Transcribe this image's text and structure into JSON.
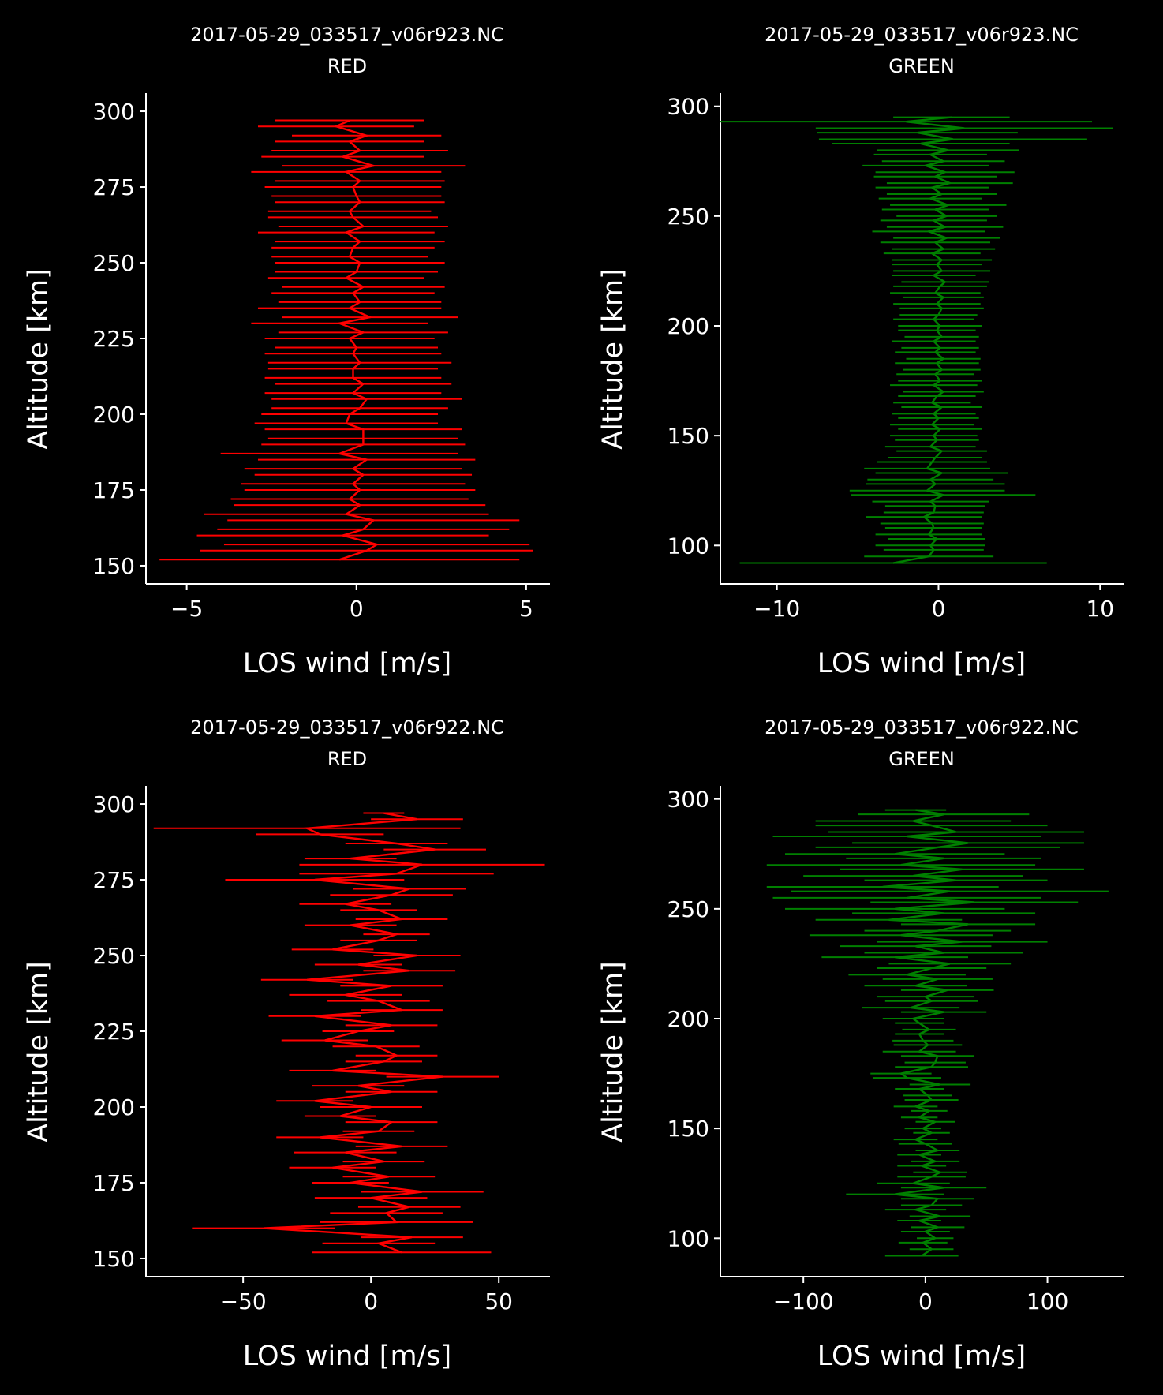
{
  "figure": {
    "background": "#000000",
    "foreground": "#ffffff"
  },
  "chart_data": [
    {
      "type": "line",
      "title": "2017-05-29_033517_v06r923.NC",
      "subtitle": "RED",
      "xlabel": "LOS wind [m/s]",
      "ylabel": "Altitude [km]",
      "color": "#ff0000",
      "xlim": [
        -6.2,
        5.7
      ],
      "ylim": [
        144,
        306
      ],
      "xticks": [
        -5,
        0,
        5
      ],
      "xtick_labels": [
        "−5",
        "0",
        "5"
      ],
      "yticks": [
        150,
        175,
        200,
        225,
        250,
        275,
        300
      ],
      "ytick_labels": [
        "150",
        "175",
        "200",
        "225",
        "250",
        "275",
        "300"
      ],
      "grid": false,
      "series": [
        {
          "altitude": [
            152,
            155,
            157,
            160,
            162,
            165,
            167,
            170,
            172,
            175,
            177,
            180,
            182,
            185,
            187,
            190,
            192,
            195,
            197,
            200,
            202,
            205,
            207,
            210,
            212,
            215,
            217,
            220,
            222,
            225,
            227,
            230,
            232,
            235,
            237,
            240,
            242,
            245,
            247,
            250,
            252,
            255,
            257,
            260,
            262,
            265,
            267,
            270,
            272,
            275,
            277,
            280,
            282,
            285,
            287,
            290,
            292,
            295,
            297
          ],
          "wind": [
            -0.5,
            0.3,
            0.6,
            -0.4,
            0.2,
            0.5,
            -0.3,
            0.1,
            -0.2,
            0.1,
            -0.1,
            0.2,
            -0.1,
            0.3,
            -0.5,
            0.2,
            0.2,
            0.2,
            -0.3,
            -0.2,
            0.1,
            0.3,
            -0.1,
            0.2,
            -0.1,
            -0.1,
            0.1,
            -0.1,
            0.0,
            -0.2,
            0.2,
            -0.5,
            0.4,
            -0.2,
            0.1,
            -0.1,
            0.2,
            -0.3,
            0.0,
            0.1,
            -0.2,
            -0.1,
            0.1,
            -0.3,
            0.2,
            -0.1,
            -0.2,
            0.1,
            0.0,
            -0.1,
            0.1,
            -0.3,
            0.5,
            -0.4,
            0.1,
            -0.2,
            0.3,
            -0.6,
            -0.2
          ],
          "error": [
            5.3,
            4.9,
            4.5,
            4.3,
            4.3,
            4.3,
            4.2,
            3.7,
            3.5,
            3.4,
            3.3,
            3.2,
            3.2,
            3.2,
            3.5,
            3.0,
            2.8,
            2.9,
            2.7,
            2.6,
            2.6,
            2.8,
            2.6,
            2.6,
            2.6,
            2.5,
            2.7,
            2.6,
            2.4,
            2.5,
            2.5,
            2.6,
            2.6,
            2.7,
            2.4,
            2.4,
            2.4,
            2.3,
            2.4,
            2.5,
            2.3,
            2.4,
            2.5,
            2.6,
            2.5,
            2.5,
            2.4,
            2.5,
            2.5,
            2.6,
            2.5,
            2.8,
            2.7,
            2.4,
            2.6,
            2.2,
            2.2,
            2.3,
            2.2
          ]
        }
      ]
    },
    {
      "type": "line",
      "title": "2017-05-29_033517_v06r923.NC",
      "subtitle": "GREEN",
      "xlabel": "LOS wind [m/s]",
      "ylabel": "Altitude [km]",
      "color": "#008000",
      "xlim": [
        -13.5,
        11.5
      ],
      "ylim": [
        82.5,
        306
      ],
      "xticks": [
        -10,
        0,
        10
      ],
      "xtick_labels": [
        "−10",
        "0",
        "10"
      ],
      "yticks": [
        100,
        150,
        200,
        250,
        300
      ],
      "ytick_labels": [
        "100",
        "150",
        "200",
        "250",
        "300"
      ],
      "grid": false,
      "series": [
        {
          "altitude": [
            92,
            95,
            98,
            100,
            103,
            105,
            108,
            110,
            113,
            115,
            118,
            120,
            123,
            125,
            128,
            130,
            133,
            135,
            138,
            140,
            143,
            145,
            148,
            150,
            153,
            155,
            158,
            160,
            163,
            165,
            168,
            170,
            173,
            175,
            178,
            180,
            183,
            185,
            188,
            190,
            193,
            195,
            198,
            200,
            203,
            205,
            208,
            210,
            213,
            215,
            218,
            220,
            223,
            225,
            228,
            230,
            233,
            235,
            238,
            240,
            243,
            245,
            248,
            250,
            253,
            255,
            258,
            260,
            263,
            265,
            268,
            270,
            273,
            275,
            278,
            280,
            283,
            285,
            288,
            290,
            293,
            295
          ],
          "wind": [
            -2.8,
            -0.6,
            -0.3,
            -0.5,
            -0.1,
            -0.6,
            -0.3,
            -0.4,
            -0.9,
            -0.3,
            -0.2,
            -0.5,
            0.3,
            -0.7,
            -0.2,
            -0.5,
            0.2,
            -0.7,
            -0.4,
            -0.2,
            0.2,
            -0.5,
            -0.1,
            -0.3,
            0.1,
            -0.4,
            0.0,
            -0.3,
            0.2,
            -0.4,
            -0.1,
            0.3,
            -0.3,
            0.1,
            -0.2,
            0.2,
            -0.1,
            0.3,
            -0.2,
            0.1,
            -0.3,
            0.2,
            -0.1,
            0.1,
            -0.3,
            0.0,
            0.2,
            -0.1,
            0.3,
            -0.2,
            0.1,
            0.4,
            -0.3,
            0.2,
            -0.1,
            0.2,
            -0.4,
            0.3,
            -0.2,
            0.5,
            -0.6,
            0.4,
            -0.3,
            0.5,
            -0.2,
            0.6,
            -0.5,
            0.2,
            -0.4,
            0.7,
            -0.2,
            0.4,
            -0.8,
            0.3,
            -0.5,
            0.6,
            -1.1,
            0.9,
            -1.3,
            1.6,
            -2.0,
            0.8
          ],
          "error": [
            9.5,
            4.0,
            3.1,
            3.4,
            3.0,
            3.3,
            3.0,
            3.2,
            3.6,
            3.1,
            3.1,
            3.6,
            5.7,
            4.8,
            4.3,
            3.9,
            4.1,
            3.9,
            3.4,
            2.9,
            2.8,
            2.8,
            2.6,
            2.7,
            2.6,
            2.6,
            2.5,
            2.6,
            2.5,
            2.4,
            2.4,
            2.5,
            2.7,
            2.6,
            2.4,
            2.4,
            2.6,
            2.3,
            2.5,
            2.4,
            2.6,
            2.3,
            2.4,
            2.6,
            2.5,
            2.4,
            2.6,
            2.7,
            2.5,
            2.8,
            2.9,
            2.7,
            2.6,
            3.0,
            2.8,
            3.1,
            3.0,
            3.2,
            3.4,
            3.3,
            3.5,
            3.6,
            3.3,
            3.1,
            3.3,
            3.6,
            3.2,
            3.4,
            3.5,
            3.9,
            3.8,
            4.3,
            3.9,
            3.8,
            3.5,
            4.4,
            5.5,
            8.3,
            6.2,
            9.2,
            11.5,
            3.6
          ]
        }
      ]
    },
    {
      "type": "line",
      "title": "2017-05-29_033517_v06r922.NC",
      "subtitle": "RED",
      "xlabel": "LOS wind [m/s]",
      "ylabel": "Altitude [km]",
      "color": "#ff0000",
      "xlim": [
        -88,
        70
      ],
      "ylim": [
        144,
        306
      ],
      "xticks": [
        -50,
        0,
        50
      ],
      "xtick_labels": [
        "−50",
        "0",
        "50"
      ],
      "yticks": [
        150,
        175,
        200,
        225,
        250,
        275,
        300
      ],
      "ytick_labels": [
        "150",
        "175",
        "200",
        "225",
        "250",
        "275",
        "300"
      ],
      "grid": false,
      "series": [
        {
          "altitude": [
            152,
            155,
            157,
            160,
            162,
            165,
            167,
            170,
            172,
            175,
            177,
            180,
            182,
            185,
            187,
            190,
            192,
            195,
            197,
            200,
            202,
            205,
            207,
            210,
            212,
            215,
            217,
            220,
            222,
            225,
            227,
            230,
            232,
            235,
            237,
            240,
            242,
            245,
            247,
            250,
            252,
            255,
            257,
            260,
            262,
            265,
            267,
            270,
            272,
            275,
            277,
            280,
            282,
            285,
            287,
            290,
            292,
            295,
            297
          ],
          "wind": [
            12,
            3,
            16,
            -42,
            10,
            6,
            15,
            0,
            20,
            -8,
            7,
            -15,
            5,
            -10,
            12,
            -20,
            3,
            8,
            -12,
            0,
            -22,
            8,
            -5,
            28,
            -15,
            5,
            10,
            2,
            -18,
            -5,
            8,
            -22,
            12,
            3,
            -10,
            8,
            -25,
            15,
            -5,
            18,
            -15,
            3,
            10,
            -8,
            12,
            3,
            -10,
            8,
            15,
            -22,
            10,
            20,
            -8,
            25,
            10,
            -20,
            -25,
            18,
            5
          ],
          "error": [
            35,
            22,
            20,
            28,
            30,
            22,
            20,
            22,
            24,
            15,
            18,
            17,
            16,
            20,
            18,
            17,
            14,
            18,
            14,
            20,
            15,
            18,
            18,
            22,
            17,
            15,
            16,
            17,
            17,
            14,
            18,
            18,
            16,
            20,
            22,
            20,
            18,
            18,
            17,
            17,
            16,
            15,
            13,
            18,
            18,
            15,
            18,
            24,
            22,
            35,
            38,
            48,
            18,
            20,
            20,
            25,
            60,
            18,
            8
          ]
        }
      ]
    },
    {
      "type": "line",
      "title": "2017-05-29_033517_v06r922.NC",
      "subtitle": "GREEN",
      "xlabel": "LOS wind [m/s]",
      "ylabel": "Altitude [km]",
      "color": "#008000",
      "xlim": [
        -168,
        163
      ],
      "ylim": [
        82.5,
        306
      ],
      "xticks": [
        -100,
        0,
        100
      ],
      "xtick_labels": [
        "−100",
        "0",
        "100"
      ],
      "yticks": [
        100,
        150,
        200,
        250,
        300
      ],
      "ytick_labels": [
        "100",
        "150",
        "200",
        "250",
        "300"
      ],
      "grid": false,
      "series": [
        {
          "altitude": [
            92,
            95,
            98,
            100,
            103,
            105,
            108,
            110,
            113,
            115,
            118,
            120,
            123,
            125,
            128,
            130,
            133,
            135,
            138,
            140,
            143,
            145,
            148,
            150,
            153,
            155,
            158,
            160,
            163,
            165,
            168,
            170,
            173,
            175,
            178,
            180,
            183,
            185,
            188,
            190,
            193,
            195,
            198,
            200,
            203,
            205,
            208,
            210,
            213,
            215,
            218,
            220,
            223,
            225,
            228,
            230,
            233,
            235,
            238,
            240,
            243,
            245,
            248,
            250,
            253,
            255,
            258,
            260,
            263,
            265,
            268,
            270,
            273,
            275,
            278,
            280,
            283,
            285,
            288,
            290,
            293,
            295
          ],
          "wind": [
            -3,
            5,
            -2,
            8,
            0,
            10,
            -5,
            12,
            -8,
            5,
            10,
            -25,
            15,
            -10,
            5,
            12,
            -3,
            8,
            -5,
            10,
            0,
            -8,
            5,
            -2,
            8,
            -5,
            3,
            -8,
            5,
            2,
            -5,
            12,
            -15,
            -20,
            5,
            8,
            10,
            -5,
            2,
            -2,
            -5,
            3,
            -5,
            -10,
            15,
            -12,
            5,
            0,
            18,
            -8,
            10,
            -15,
            5,
            20,
            -25,
            15,
            -8,
            30,
            -20,
            10,
            35,
            -30,
            15,
            -25,
            40,
            -15,
            20,
            -35,
            25,
            -10,
            30,
            -20,
            15,
            -25,
            10,
            35,
            -15,
            25,
            5,
            -10,
            15,
            -8
          ],
          "error": [
            30,
            18,
            20,
            15,
            20,
            22,
            18,
            25,
            25,
            25,
            30,
            40,
            35,
            30,
            28,
            22,
            20,
            20,
            18,
            18,
            22,
            18,
            15,
            15,
            16,
            15,
            15,
            18,
            22,
            20,
            20,
            25,
            28,
            25,
            30,
            25,
            30,
            30,
            28,
            25,
            20,
            22,
            20,
            25,
            35,
            40,
            38,
            40,
            38,
            42,
            45,
            48,
            45,
            50,
            60,
            65,
            62,
            70,
            75,
            60,
            55,
            60,
            75,
            90,
            85,
            110,
            130,
            95,
            75,
            90,
            100,
            110,
            80,
            90,
            100,
            95,
            110,
            105,
            95,
            80,
            70,
            25
          ]
        }
      ]
    }
  ]
}
